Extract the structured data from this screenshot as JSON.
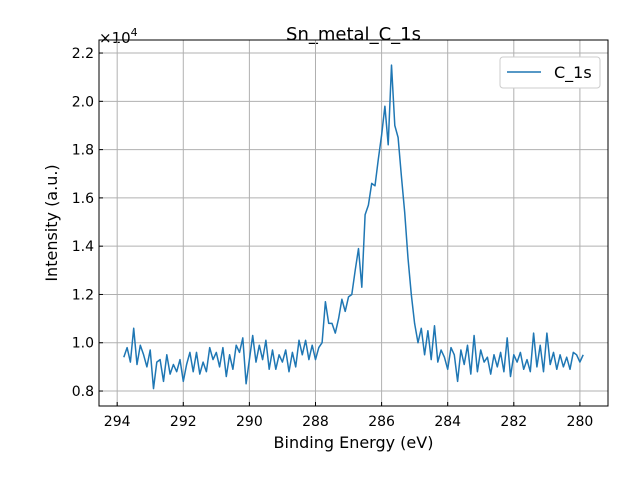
{
  "chart_data": {
    "type": "line",
    "title": "Sn_metal_C_1s",
    "xlabel": "Binding Energy (eV)",
    "ylabel": "Intensity (a.u.)",
    "y_multiplier": "×10",
    "y_multiplier_exp": "4",
    "xlim": [
      294.55,
      279.15
    ],
    "ylim": [
      0.738,
      2.254
    ],
    "x_reversed": true,
    "grid": true,
    "legend_position": "top-right",
    "x_ticks": [
      "294",
      "292",
      "290",
      "288",
      "286",
      "284",
      "282",
      "280"
    ],
    "y_ticks": [
      "0.8",
      "1.0",
      "1.2",
      "1.4",
      "1.6",
      "1.8",
      "2.0",
      "2.2"
    ],
    "series": [
      {
        "name": "C_1s",
        "color": "#1f77b4",
        "x_start": 293.8,
        "x_step": -0.1,
        "values": [
          9400,
          9800,
          9200,
          10600,
          9100,
          9900,
          9500,
          9000,
          9700,
          8100,
          9200,
          9300,
          8400,
          9500,
          8700,
          9100,
          8800,
          9300,
          8400,
          9100,
          9600,
          8800,
          9600,
          8700,
          9200,
          8800,
          9800,
          9300,
          9600,
          9000,
          9800,
          8600,
          9500,
          8900,
          9900,
          9600,
          10200,
          8300,
          9300,
          10300,
          9200,
          9900,
          9300,
          10100,
          8900,
          9700,
          8900,
          9500,
          9200,
          9700,
          8800,
          9600,
          9000,
          10100,
          9500,
          10100,
          9300,
          9900,
          9300,
          9800,
          10000,
          11700,
          10800,
          10800,
          10400,
          11000,
          11800,
          11300,
          11900,
          12000,
          13000,
          13900,
          12300,
          15300,
          15700,
          16600,
          16500,
          17600,
          18600,
          19800,
          18200,
          21500,
          19000,
          18500,
          16900,
          15400,
          13500,
          12000,
          10800,
          10000,
          10600,
          9500,
          10500,
          9300,
          10700,
          9200,
          9700,
          9400,
          8900,
          9800,
          9500,
          8400,
          9700,
          9100,
          9900,
          8700,
          10300,
          8800,
          9700,
          9200,
          9400,
          8700,
          9500,
          9000,
          9600,
          8800,
          10200,
          8600,
          9500,
          9200,
          9600,
          8900,
          9300,
          8800,
          10400,
          9000,
          9900,
          8800,
          10400,
          9100,
          9600,
          8900,
          9500,
          9000,
          9400,
          8900,
          9600,
          9500,
          9200,
          9500
        ]
      }
    ]
  }
}
